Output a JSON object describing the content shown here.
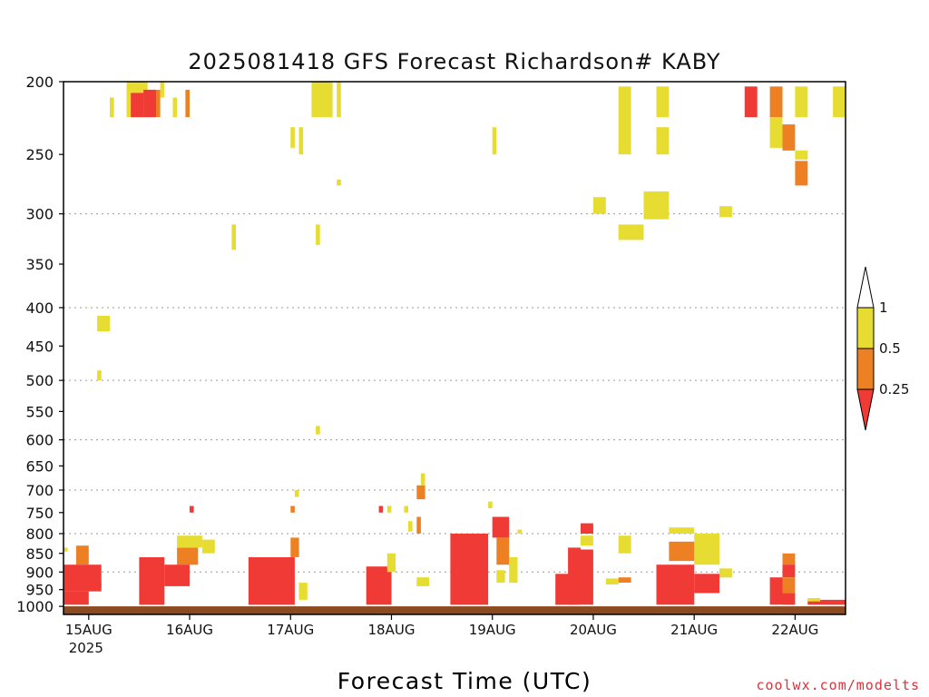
{
  "chart_data": {
    "type": "heatmap",
    "title": "2025081418 GFS Forecast Richardson# KABY",
    "xlabel": "Forecast Time (UTC)",
    "ylabel": "",
    "credit": "coolwx.com/modelts",
    "x_range": [
      "2025-08-14T18:00Z",
      "2025-08-22T12:00Z"
    ],
    "x_ticks": [
      {
        "label": "15AUG",
        "sub": "2025",
        "time": "2025-08-15T00:00Z"
      },
      {
        "label": "16AUG",
        "sub": "",
        "time": "2025-08-16T00:00Z"
      },
      {
        "label": "17AUG",
        "sub": "",
        "time": "2025-08-17T00:00Z"
      },
      {
        "label": "18AUG",
        "sub": "",
        "time": "2025-08-18T00:00Z"
      },
      {
        "label": "19AUG",
        "sub": "",
        "time": "2025-08-19T00:00Z"
      },
      {
        "label": "20AUG",
        "sub": "",
        "time": "2025-08-20T00:00Z"
      },
      {
        "label": "21AUG",
        "sub": "",
        "time": "2025-08-21T00:00Z"
      },
      {
        "label": "22AUG",
        "sub": "",
        "time": "2025-08-22T00:00Z"
      }
    ],
    "y_axis": {
      "scale": "log",
      "reversed": true,
      "range": [
        1025,
        200
      ],
      "unit": "hPa"
    },
    "y_ticks": [
      "200",
      "250",
      "300",
      "350",
      "400",
      "450",
      "500",
      "550",
      "600",
      "650",
      "700",
      "750",
      "800",
      "850",
      "900",
      "950",
      "1000"
    ],
    "gridlines_hpa": [
      300,
      400,
      500,
      600,
      700,
      800,
      900
    ],
    "ground_band": {
      "from_hpa": 1000,
      "to_hpa": 1025,
      "color": "#8b4a20"
    },
    "legend": {
      "placement": "right",
      "levels": [
        "1",
        "0.5",
        "0.25"
      ],
      "colors": {
        "above_1": "#ffffff",
        "0.5_to_1": "#e6dc32",
        "0.25_to_0.5": "#ee8024",
        "below_0.25": "#f03a36"
      }
    },
    "shaded_cells": [
      {
        "cls": "yellow",
        "t0": "2025-08-14T18:00Z",
        "t1": "2025-08-14T19:00Z",
        "p_top": 835,
        "p_bot": 845
      },
      {
        "cls": "orange",
        "t0": "2025-08-14T21:00Z",
        "t1": "2025-08-15T00:00Z",
        "p_top": 830,
        "p_bot": 880
      },
      {
        "cls": "red",
        "t0": "2025-08-14T18:00Z",
        "t1": "2025-08-15T03:00Z",
        "p_top": 880,
        "p_bot": 955
      },
      {
        "cls": "red",
        "t0": "2025-08-14T18:00Z",
        "t1": "2025-08-15T00:00Z",
        "p_top": 955,
        "p_bot": 995
      },
      {
        "cls": "red",
        "t0": "2025-08-15T00:00Z",
        "t1": "2025-08-15T03:00Z",
        "p_top": 930,
        "p_bot": 945
      },
      {
        "cls": "yellow",
        "t0": "2025-08-15T02:00Z",
        "t1": "2025-08-15T05:00Z",
        "p_top": 410,
        "p_bot": 430
      },
      {
        "cls": "yellow",
        "t0": "2025-08-15T02:00Z",
        "t1": "2025-08-15T03:00Z",
        "p_top": 485,
        "p_bot": 500
      },
      {
        "cls": "yellow",
        "t0": "2025-08-15T05:00Z",
        "t1": "2025-08-15T06:00Z",
        "p_top": 210,
        "p_bot": 223
      },
      {
        "cls": "yellow",
        "t0": "2025-08-15T09:00Z",
        "t1": "2025-08-15T14:00Z",
        "p_top": 200,
        "p_bot": 223
      },
      {
        "cls": "red",
        "t0": "2025-08-15T10:00Z",
        "t1": "2025-08-15T13:00Z",
        "p_top": 207,
        "p_bot": 223
      },
      {
        "cls": "red",
        "t0": "2025-08-15T13:00Z",
        "t1": "2025-08-15T16:00Z",
        "p_top": 205,
        "p_bot": 223
      },
      {
        "cls": "orange",
        "t0": "2025-08-15T16:00Z",
        "t1": "2025-08-15T17:00Z",
        "p_top": 205,
        "p_bot": 223
      },
      {
        "cls": "yellow",
        "t0": "2025-08-15T17:00Z",
        "t1": "2025-08-15T18:00Z",
        "p_top": 200,
        "p_bot": 210
      },
      {
        "cls": "yellow",
        "t0": "2025-08-15T20:00Z",
        "t1": "2025-08-15T21:00Z",
        "p_top": 210,
        "p_bot": 223
      },
      {
        "cls": "orange",
        "t0": "2025-08-15T23:00Z",
        "t1": "2025-08-16T00:00Z",
        "p_top": 205,
        "p_bot": 223
      },
      {
        "cls": "red",
        "t0": "2025-08-15T12:00Z",
        "t1": "2025-08-15T18:00Z",
        "p_top": 860,
        "p_bot": 995
      },
      {
        "cls": "yellow",
        "t0": "2025-08-15T21:00Z",
        "t1": "2025-08-16T03:00Z",
        "p_top": 805,
        "p_bot": 835
      },
      {
        "cls": "orange",
        "t0": "2025-08-15T21:00Z",
        "t1": "2025-08-16T02:00Z",
        "p_top": 835,
        "p_bot": 880
      },
      {
        "cls": "red",
        "t0": "2025-08-15T18:00Z",
        "t1": "2025-08-16T00:00Z",
        "p_top": 880,
        "p_bot": 940
      },
      {
        "cls": "red",
        "t0": "2025-08-16T00:00Z",
        "t1": "2025-08-16T01:00Z",
        "p_top": 735,
        "p_bot": 750
      },
      {
        "cls": "yellow",
        "t0": "2025-08-16T03:00Z",
        "t1": "2025-08-16T06:00Z",
        "p_top": 815,
        "p_bot": 850
      },
      {
        "cls": "yellow",
        "t0": "2025-08-16T10:00Z",
        "t1": "2025-08-16T11:00Z",
        "p_top": 310,
        "p_bot": 335
      },
      {
        "cls": "yellow",
        "t0": "2025-08-17T00:00Z",
        "t1": "2025-08-17T01:00Z",
        "p_top": 230,
        "p_bot": 245
      },
      {
        "cls": "yellow",
        "t0": "2025-08-17T02:00Z",
        "t1": "2025-08-17T03:00Z",
        "p_top": 230,
        "p_bot": 250
      },
      {
        "cls": "orange",
        "t0": "2025-08-17T00:00Z",
        "t1": "2025-08-17T01:00Z",
        "p_top": 735,
        "p_bot": 750
      },
      {
        "cls": "yellow",
        "t0": "2025-08-17T01:00Z",
        "t1": "2025-08-17T02:00Z",
        "p_top": 700,
        "p_bot": 715
      },
      {
        "cls": "orange",
        "t0": "2025-08-17T00:00Z",
        "t1": "2025-08-17T02:00Z",
        "p_top": 810,
        "p_bot": 860
      },
      {
        "cls": "red",
        "t0": "2025-08-16T14:00Z",
        "t1": "2025-08-17T01:00Z",
        "p_top": 860,
        "p_bot": 995
      },
      {
        "cls": "yellow",
        "t0": "2025-08-17T02:00Z",
        "t1": "2025-08-17T04:00Z",
        "p_top": 930,
        "p_bot": 980
      },
      {
        "cls": "yellow",
        "t0": "2025-08-17T05:00Z",
        "t1": "2025-08-17T10:00Z",
        "p_top": 200,
        "p_bot": 223
      },
      {
        "cls": "yellow",
        "t0": "2025-08-17T06:00Z",
        "t1": "2025-08-17T07:00Z",
        "p_top": 310,
        "p_bot": 330
      },
      {
        "cls": "yellow",
        "t0": "2025-08-17T06:00Z",
        "t1": "2025-08-17T07:00Z",
        "p_top": 575,
        "p_bot": 590
      },
      {
        "cls": "yellow",
        "t0": "2025-08-17T11:00Z",
        "t1": "2025-08-17T12:00Z",
        "p_top": 200,
        "p_bot": 223
      },
      {
        "cls": "yellow",
        "t0": "2025-08-17T11:00Z",
        "t1": "2025-08-17T12:00Z",
        "p_top": 270,
        "p_bot": 275
      },
      {
        "cls": "red",
        "t0": "2025-08-17T18:00Z",
        "t1": "2025-08-18T00:00Z",
        "p_top": 885,
        "p_bot": 995
      },
      {
        "cls": "yellow",
        "t0": "2025-08-17T23:00Z",
        "t1": "2025-08-18T01:00Z",
        "p_top": 850,
        "p_bot": 900
      },
      {
        "cls": "red",
        "t0": "2025-08-17T21:00Z",
        "t1": "2025-08-17T22:00Z",
        "p_top": 735,
        "p_bot": 750
      },
      {
        "cls": "yellow",
        "t0": "2025-08-17T23:00Z",
        "t1": "2025-08-18T00:00Z",
        "p_top": 735,
        "p_bot": 750
      },
      {
        "cls": "yellow",
        "t0": "2025-08-18T03:00Z",
        "t1": "2025-08-18T04:00Z",
        "p_top": 735,
        "p_bot": 750
      },
      {
        "cls": "orange",
        "t0": "2025-08-18T06:00Z",
        "t1": "2025-08-18T08:00Z",
        "p_top": 690,
        "p_bot": 720
      },
      {
        "cls": "yellow",
        "t0": "2025-08-18T07:00Z",
        "t1": "2025-08-18T08:00Z",
        "p_top": 665,
        "p_bot": 690
      },
      {
        "cls": "orange",
        "t0": "2025-08-18T06:00Z",
        "t1": "2025-08-18T07:00Z",
        "p_top": 760,
        "p_bot": 800
      },
      {
        "cls": "yellow",
        "t0": "2025-08-18T04:00Z",
        "t1": "2025-08-18T05:00Z",
        "p_top": 770,
        "p_bot": 795
      },
      {
        "cls": "yellow",
        "t0": "2025-08-18T06:00Z",
        "t1": "2025-08-18T09:00Z",
        "p_top": 915,
        "p_bot": 940
      },
      {
        "cls": "yellow",
        "t0": "2025-08-19T00:00Z",
        "t1": "2025-08-19T01:00Z",
        "p_top": 230,
        "p_bot": 250
      },
      {
        "cls": "yellow",
        "t0": "2025-08-18T23:00Z",
        "t1": "2025-08-19T00:00Z",
        "p_top": 725,
        "p_bot": 740
      },
      {
        "cls": "red",
        "t0": "2025-08-18T14:00Z",
        "t1": "2025-08-18T23:00Z",
        "p_top": 800,
        "p_bot": 995
      },
      {
        "cls": "red",
        "t0": "2025-08-19T00:00Z",
        "t1": "2025-08-19T04:00Z",
        "p_top": 760,
        "p_bot": 810
      },
      {
        "cls": "orange",
        "t0": "2025-08-19T01:00Z",
        "t1": "2025-08-19T04:00Z",
        "p_top": 810,
        "p_bot": 880
      },
      {
        "cls": "yellow",
        "t0": "2025-08-19T01:00Z",
        "t1": "2025-08-19T03:00Z",
        "p_top": 895,
        "p_bot": 930
      },
      {
        "cls": "yellow",
        "t0": "2025-08-19T04:00Z",
        "t1": "2025-08-19T06:00Z",
        "p_top": 860,
        "p_bot": 930
      },
      {
        "cls": "yellow",
        "t0": "2025-08-19T06:00Z",
        "t1": "2025-08-19T07:00Z",
        "p_top": 790,
        "p_bot": 800
      },
      {
        "cls": "red",
        "t0": "2025-08-19T15:00Z",
        "t1": "2025-08-19T20:00Z",
        "p_top": 905,
        "p_bot": 995
      },
      {
        "cls": "red",
        "t0": "2025-08-19T21:00Z",
        "t1": "2025-08-20T00:00Z",
        "p_top": 775,
        "p_bot": 800
      },
      {
        "cls": "yellow",
        "t0": "2025-08-19T21:00Z",
        "t1": "2025-08-20T00:00Z",
        "p_top": 805,
        "p_bot": 830
      },
      {
        "cls": "red",
        "t0": "2025-08-19T18:00Z",
        "t1": "2025-08-19T21:00Z",
        "p_top": 835,
        "p_bot": 995
      },
      {
        "cls": "red",
        "t0": "2025-08-19T21:00Z",
        "t1": "2025-08-20T00:00Z",
        "p_top": 840,
        "p_bot": 995
      },
      {
        "cls": "yellow",
        "t0": "2025-08-20T00:00Z",
        "t1": "2025-08-20T03:00Z",
        "p_top": 285,
        "p_bot": 300
      },
      {
        "cls": "yellow",
        "t0": "2025-08-20T06:00Z",
        "t1": "2025-08-20T09:00Z",
        "p_top": 203,
        "p_bot": 250
      },
      {
        "cls": "yellow",
        "t0": "2025-08-20T06:00Z",
        "t1": "2025-08-20T12:00Z",
        "p_top": 310,
        "p_bot": 325
      },
      {
        "cls": "yellow",
        "t0": "2025-08-20T12:00Z",
        "t1": "2025-08-20T18:00Z",
        "p_top": 280,
        "p_bot": 305
      },
      {
        "cls": "yellow",
        "t0": "2025-08-20T15:00Z",
        "t1": "2025-08-20T18:00Z",
        "p_top": 203,
        "p_bot": 223
      },
      {
        "cls": "yellow",
        "t0": "2025-08-20T15:00Z",
        "t1": "2025-08-20T18:00Z",
        "p_top": 230,
        "p_bot": 250
      },
      {
        "cls": "yellow",
        "t0": "2025-08-20T06:00Z",
        "t1": "2025-08-20T09:00Z",
        "p_top": 805,
        "p_bot": 850
      },
      {
        "cls": "yellow",
        "t0": "2025-08-20T03:00Z",
        "t1": "2025-08-20T06:00Z",
        "p_top": 918,
        "p_bot": 935
      },
      {
        "cls": "orange",
        "t0": "2025-08-20T06:00Z",
        "t1": "2025-08-20T09:00Z",
        "p_top": 915,
        "p_bot": 930
      },
      {
        "cls": "yellow",
        "t0": "2025-08-20T18:00Z",
        "t1": "2025-08-21T00:00Z",
        "p_top": 785,
        "p_bot": 800
      },
      {
        "cls": "yellow",
        "t0": "2025-08-21T00:00Z",
        "t1": "2025-08-21T06:00Z",
        "p_top": 800,
        "p_bot": 880
      },
      {
        "cls": "orange",
        "t0": "2025-08-20T18:00Z",
        "t1": "2025-08-21T00:00Z",
        "p_top": 820,
        "p_bot": 870
      },
      {
        "cls": "red",
        "t0": "2025-08-20T15:00Z",
        "t1": "2025-08-21T00:00Z",
        "p_top": 880,
        "p_bot": 995
      },
      {
        "cls": "red",
        "t0": "2025-08-21T00:00Z",
        "t1": "2025-08-21T06:00Z",
        "p_top": 905,
        "p_bot": 960
      },
      {
        "cls": "yellow",
        "t0": "2025-08-21T06:00Z",
        "t1": "2025-08-21T09:00Z",
        "p_top": 890,
        "p_bot": 915
      },
      {
        "cls": "yellow",
        "t0": "2025-08-21T06:00Z",
        "t1": "2025-08-21T09:00Z",
        "p_top": 293,
        "p_bot": 303
      },
      {
        "cls": "red",
        "t0": "2025-08-21T12:00Z",
        "t1": "2025-08-21T15:00Z",
        "p_top": 203,
        "p_bot": 223
      },
      {
        "cls": "orange",
        "t0": "2025-08-21T18:00Z",
        "t1": "2025-08-21T21:00Z",
        "p_top": 203,
        "p_bot": 223
      },
      {
        "cls": "yellow",
        "t0": "2025-08-21T18:00Z",
        "t1": "2025-08-21T21:00Z",
        "p_top": 223,
        "p_bot": 245
      },
      {
        "cls": "orange",
        "t0": "2025-08-21T21:00Z",
        "t1": "2025-08-22T00:00Z",
        "p_top": 228,
        "p_bot": 247
      },
      {
        "cls": "yellow",
        "t0": "2025-08-22T00:00Z",
        "t1": "2025-08-22T03:00Z",
        "p_top": 203,
        "p_bot": 223
      },
      {
        "cls": "yellow",
        "t0": "2025-08-22T09:00Z",
        "t1": "2025-08-22T12:00Z",
        "p_top": 203,
        "p_bot": 223
      },
      {
        "cls": "orange",
        "t0": "2025-08-22T00:00Z",
        "t1": "2025-08-22T03:00Z",
        "p_top": 255,
        "p_bot": 275
      },
      {
        "cls": "yellow",
        "t0": "2025-08-22T00:00Z",
        "t1": "2025-08-22T03:00Z",
        "p_top": 247,
        "p_bot": 254
      },
      {
        "cls": "orange",
        "t0": "2025-08-21T21:00Z",
        "t1": "2025-08-22T00:00Z",
        "p_top": 850,
        "p_bot": 880
      },
      {
        "cls": "red",
        "t0": "2025-08-21T21:00Z",
        "t1": "2025-08-22T00:00Z",
        "p_top": 880,
        "p_bot": 915
      },
      {
        "cls": "orange",
        "t0": "2025-08-21T21:00Z",
        "t1": "2025-08-22T00:00Z",
        "p_top": 915,
        "p_bot": 960
      },
      {
        "cls": "red",
        "t0": "2025-08-21T18:00Z",
        "t1": "2025-08-21T21:00Z",
        "p_top": 915,
        "p_bot": 995
      },
      {
        "cls": "red",
        "t0": "2025-08-21T21:00Z",
        "t1": "2025-08-22T00:00Z",
        "p_top": 960,
        "p_bot": 995
      },
      {
        "cls": "red",
        "t0": "2025-08-22T03:00Z",
        "t1": "2025-08-22T12:00Z",
        "p_top": 980,
        "p_bot": 995
      },
      {
        "cls": "yellow",
        "t0": "2025-08-22T03:00Z",
        "t1": "2025-08-22T06:00Z",
        "p_top": 975,
        "p_bot": 985
      }
    ]
  }
}
